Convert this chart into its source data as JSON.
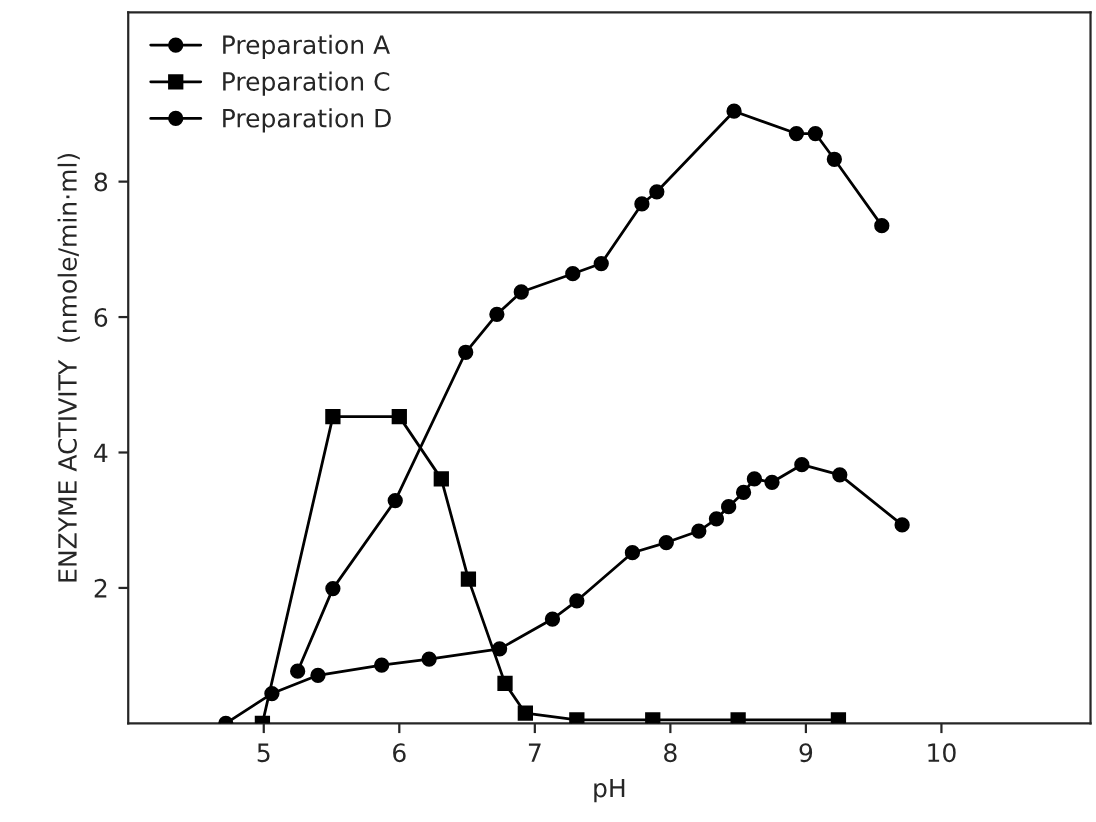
{
  "chart_data": {
    "type": "line",
    "xlabel": "pH",
    "ylabel": "ENZYME ACTIVITY  (nmole/min·ml)",
    "xlim": [
      4,
      11.1
    ],
    "xticks": [
      5,
      6,
      7,
      8,
      9,
      10
    ],
    "ylim": [
      0,
      10.5
    ],
    "yticks": [
      2,
      4,
      6,
      8
    ],
    "grid": false,
    "legend": "top left",
    "line_style": "solid",
    "series": [
      {
        "name": "Preparation A",
        "color": "#000000",
        "marker": "circle",
        "x": [
          5.25,
          5.51,
          5.97,
          6.49,
          6.72,
          6.9,
          7.28,
          7.49,
          7.79,
          7.9,
          8.47,
          8.93,
          9.07,
          9.21,
          9.56
        ],
        "values": [
          0.77,
          1.99,
          3.29,
          5.48,
          6.04,
          6.37,
          6.64,
          6.79,
          7.67,
          7.85,
          9.04,
          8.71,
          8.71,
          8.33,
          7.35
        ]
      },
      {
        "name": "Preparation C",
        "color": "#000000",
        "marker": "square",
        "x": [
          4.99,
          5.51,
          6.0,
          6.31,
          6.51,
          6.78,
          6.93,
          7.31,
          7.87,
          8.5,
          9.24
        ],
        "values": [
          0.0,
          4.53,
          4.53,
          3.61,
          2.13,
          0.59,
          0.15,
          0.05,
          0.05,
          0.05,
          0.05
        ]
      },
      {
        "name": "Preparation D",
        "color": "#000000",
        "marker": "circle",
        "x": [
          4.72,
          5.06,
          5.4,
          5.87,
          6.22,
          6.74,
          7.13,
          7.31,
          7.72,
          7.97,
          8.21,
          8.34,
          8.43,
          8.54,
          8.62,
          8.75,
          8.97,
          9.25,
          9.71
        ],
        "values": [
          0.0,
          0.44,
          0.71,
          0.86,
          0.95,
          1.1,
          1.54,
          1.81,
          2.52,
          2.67,
          2.84,
          3.02,
          3.2,
          3.41,
          3.61,
          3.56,
          3.82,
          3.67,
          2.93
        ]
      }
    ]
  }
}
